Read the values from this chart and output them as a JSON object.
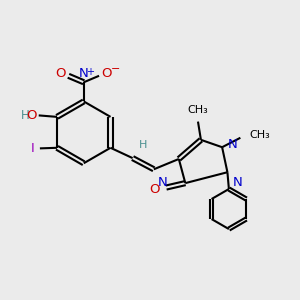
{
  "bg_color": "#ebebeb",
  "atom_colors": {
    "C": "#000000",
    "N": "#0000cc",
    "O": "#cc0000",
    "H": "#4a9090",
    "I": "#9900bb"
  },
  "bond_color": "#000000",
  "bond_lw": 1.5,
  "figsize": [
    3.0,
    3.0
  ],
  "dpi": 100,
  "xlim": [
    0,
    10
  ],
  "ylim": [
    0,
    10
  ]
}
